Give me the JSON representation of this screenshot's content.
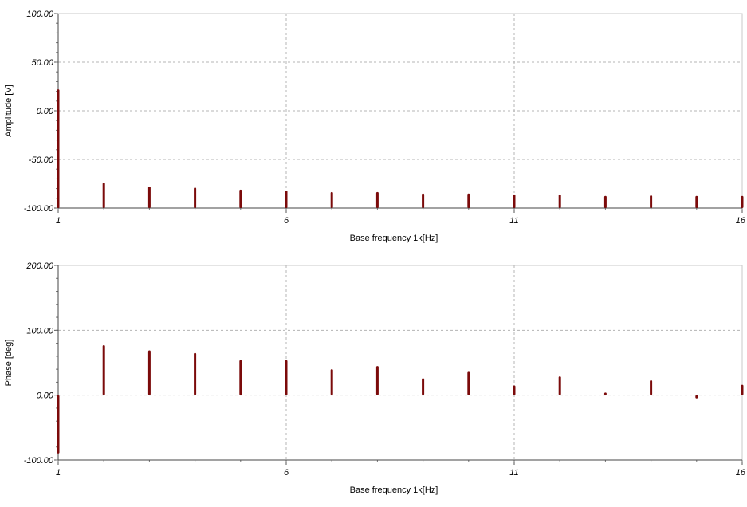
{
  "chart_data": [
    {
      "type": "bar",
      "title": "",
      "xlabel": "Base frequency 1k[Hz]",
      "ylabel": "Amplitude [V]",
      "xlim": [
        1,
        16
      ],
      "ylim": [
        -100,
        100
      ],
      "x_ticks": [
        "1",
        "6",
        "11",
        "16"
      ],
      "y_ticks": [
        "100.00",
        "50.00",
        "0.00",
        "-50.00",
        "-100.00"
      ],
      "grid": true,
      "color": "#7b0a0a",
      "series": [
        {
          "x": [
            1,
            2,
            3,
            4,
            5,
            6,
            7,
            8,
            9,
            10,
            11,
            12,
            13,
            14,
            15,
            16
          ],
          "values": [
            22,
            -74,
            -78,
            -79,
            -81,
            -82,
            -83.5,
            -83.5,
            -85,
            -85,
            -86,
            -86,
            -87.5,
            -87,
            -87.5,
            -87.5
          ]
        }
      ]
    },
    {
      "type": "bar",
      "title": "",
      "xlabel": "Base frequency 1k[Hz]",
      "ylabel": "Phase [deg]",
      "xlim": [
        1,
        16
      ],
      "ylim": [
        -100,
        200
      ],
      "x_ticks": [
        "1",
        "6",
        "11",
        "16"
      ],
      "y_ticks": [
        "200.00",
        "100.00",
        "0.00",
        "-100.00"
      ],
      "grid": true,
      "color": "#7b0a0a",
      "series": [
        {
          "x": [
            1,
            2,
            3,
            4,
            5,
            6,
            7,
            8,
            9,
            10,
            11,
            12,
            13,
            14,
            15,
            16
          ],
          "values": [
            -90,
            77,
            69,
            65,
            54,
            54,
            40,
            45,
            26,
            36,
            15,
            29,
            4,
            23,
            -5,
            16
          ]
        }
      ]
    }
  ]
}
